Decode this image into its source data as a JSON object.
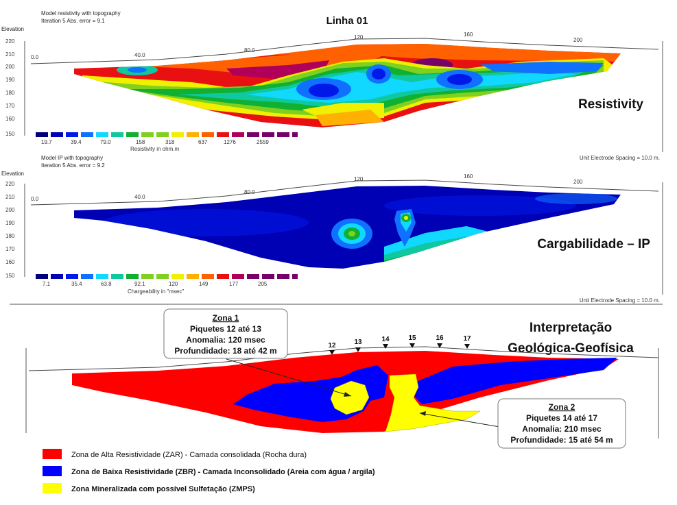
{
  "title": "Linha 01",
  "resistivity": {
    "model_label": "Model resistivity with topography",
    "iteration_label": "Iteration 5 Abs. error = 9.1",
    "elevation_label": "Elevation",
    "elev_ticks": [
      "220",
      "210",
      "200",
      "190",
      "180",
      "170",
      "160",
      "150"
    ],
    "dist_ticks": [
      "0.0",
      "40.0",
      "80.0",
      "120",
      "160",
      "200"
    ],
    "side_label": "Resistivity",
    "scale_values": [
      "19.7",
      "39.4",
      "79.0",
      "158",
      "318",
      "637",
      "1276",
      "2559"
    ],
    "scale_unit": "Resistivity in ohm.m",
    "spacing_label": "Unit Electrode Spacing = 10.0 m."
  },
  "ip": {
    "model_label": "Model IP with topography",
    "iteration_label": "Iteration 5 Abs. error = 9.2",
    "elevation_label": "Elevation",
    "elev_ticks": [
      "220",
      "210",
      "200",
      "190",
      "180",
      "170",
      "160",
      "150"
    ],
    "dist_ticks": [
      "0.0",
      "40.0",
      "80.0",
      "120",
      "160",
      "200"
    ],
    "side_label": "Cargabilidade – IP",
    "scale_values": [
      "7.1",
      "35.4",
      "63.8",
      "92.1",
      "120",
      "149",
      "177",
      "205"
    ],
    "scale_unit": "Chargeability in \"msec\"",
    "spacing_label": "Unit Electrode Spacing = 10.0 m."
  },
  "scale_colors": [
    "#00007a",
    "#0000b4",
    "#0018e8",
    "#1070ff",
    "#10d8ff",
    "#10c8a0",
    "#10b030",
    "#80d020",
    "#f0f000",
    "#ffb000",
    "#ff6000",
    "#e81010",
    "#b0005a",
    "#78006a"
  ],
  "interpretation": {
    "title_line1": "Interpretação",
    "title_line2": "Geológica-Geofísica",
    "markers": [
      "12",
      "13",
      "14",
      "15",
      "16",
      "17"
    ],
    "zona1": {
      "title": "Zona 1",
      "piquetes": "Piquetes 12 até 13",
      "anomalia": "Anomalia: 120 msec",
      "profundidade": "Profundidade: 18 até 42 m"
    },
    "zona2": {
      "title": "Zona 2",
      "piquetes": "Piquetes 14 até 17",
      "anomalia": "Anomalia: 210 msec",
      "profundidade": "Profundidade: 15 até 54 m"
    },
    "legend": [
      {
        "color": "#ff0000",
        "label": "Zona de Alta Resistividade (ZAR) - Camada consolidada (Rocha dura)"
      },
      {
        "color": "#0000ff",
        "label": "Zona de Baixa Resistividade (ZBR) - Camada Inconsolidado (Areia com água / argila)"
      },
      {
        "color": "#ffff00",
        "label": "Zona Mineralizada com possível Sulfetação (ZMPS)"
      }
    ]
  }
}
